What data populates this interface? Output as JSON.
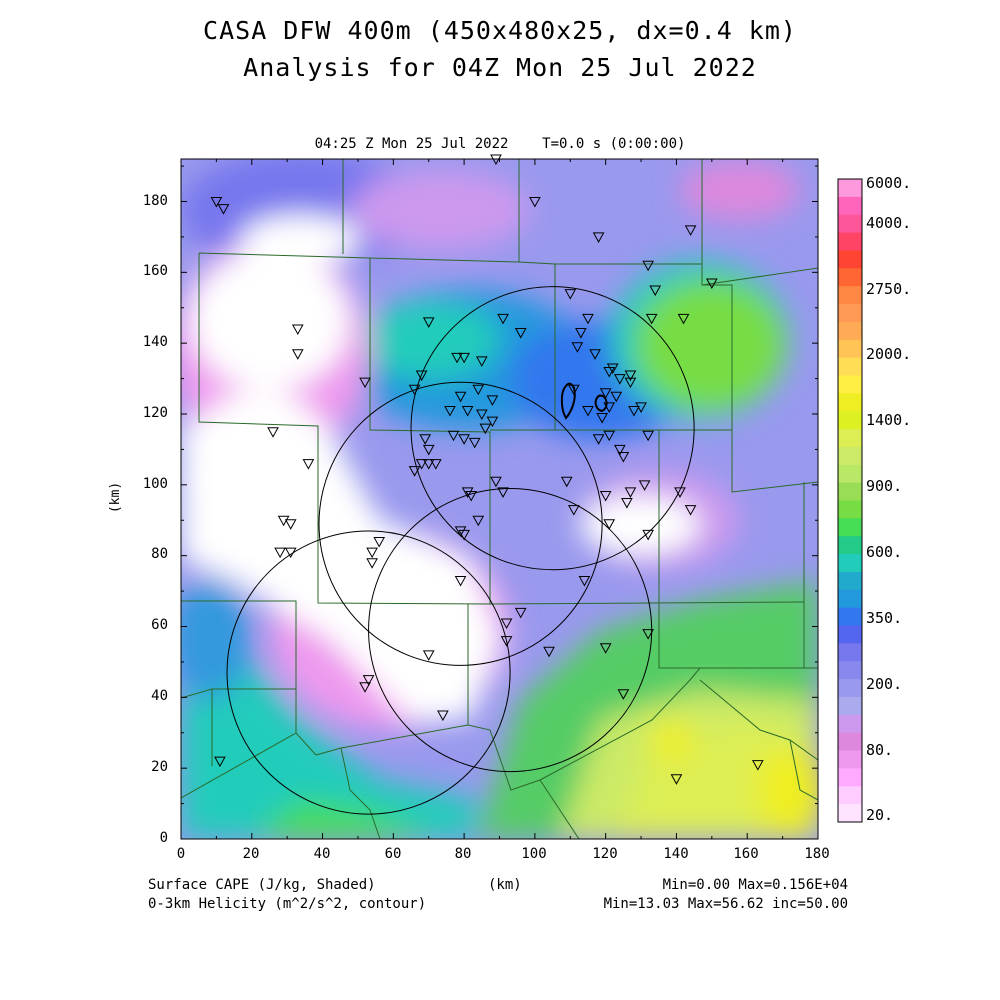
{
  "header": {
    "title_line1": "CASA DFW 400m (450x480x25, dx=0.4 km)",
    "title_line2": "Analysis for 04Z Mon 25 Jul 2022",
    "subtitle": "04:25 Z Mon 25 Jul 2022    T=0.0 s (0:00:00)"
  },
  "axes": {
    "y_label": "(km)",
    "x_label": "(km)",
    "y_ticks": [
      "0",
      "20",
      "40",
      "60",
      "80",
      "100",
      "120",
      "140",
      "160",
      "180"
    ],
    "x_ticks": [
      "0",
      "20",
      "40",
      "60",
      "80",
      "100",
      "120",
      "140",
      "160",
      "180"
    ],
    "x_range_km": [
      0,
      180
    ],
    "y_range_km": [
      0,
      192
    ]
  },
  "colorbar": {
    "labels": [
      "6000.",
      "4000.",
      "2750.",
      "2000.",
      "1400.",
      "900.",
      "600.",
      "350.",
      "200.",
      "80.",
      "20."
    ],
    "colors": [
      "#ff99dd",
      "#ff66bb",
      "#ff5599",
      "#ff4466",
      "#ff4433",
      "#ff6633",
      "#ff8844",
      "#ff9955",
      "#ffaa55",
      "#ffc455",
      "#ffdd55",
      "#ffee44",
      "#eeee22",
      "#ddf022",
      "#ddee55",
      "#ccea66",
      "#b8e866",
      "#99dd55",
      "#77dd44",
      "#44dd55",
      "#22cc88",
      "#22ccbb",
      "#22aacc",
      "#2299dd",
      "#3377ee",
      "#5566ee",
      "#7777ee",
      "#8888ee",
      "#9999ee",
      "#aaaaee",
      "#cc99ee",
      "#dd88dd",
      "#ee99ee",
      "#ffaaff",
      "#ffccff",
      "#ffe4ff"
    ]
  },
  "footer": {
    "left_line1": "Surface CAPE (J/kg, Shaded)",
    "left_line2": "0-3km Helicity (m^2/s^2, contour)",
    "right_line1": "Min=0.00 Max=0.156E+04",
    "right_line2": "Min=13.03 Max=56.62 inc=50.00",
    "center_label": "(km)"
  },
  "map": {
    "radars": [
      {
        "name": "radar-ring-1",
        "center_km": [
          53,
          47
        ],
        "radius_km": 40
      },
      {
        "name": "radar-ring-2",
        "center_km": [
          79,
          89
        ],
        "radius_km": 40
      },
      {
        "name": "radar-ring-3",
        "center_km": [
          105,
          116
        ],
        "radius_km": 40
      },
      {
        "name": "radar-ring-4",
        "center_km": [
          93,
          59
        ],
        "radius_km": 40
      }
    ],
    "stations_km": [
      [
        10,
        180
      ],
      [
        12,
        178
      ],
      [
        89,
        192
      ],
      [
        100,
        180
      ],
      [
        118,
        170
      ],
      [
        132,
        162
      ],
      [
        134,
        155
      ],
      [
        144,
        172
      ],
      [
        150,
        157
      ],
      [
        33,
        144
      ],
      [
        33,
        137
      ],
      [
        52,
        129
      ],
      [
        26,
        115
      ],
      [
        36,
        106
      ],
      [
        29,
        90
      ],
      [
        31,
        89
      ],
      [
        28,
        81
      ],
      [
        31,
        81
      ],
      [
        66,
        127
      ],
      [
        68,
        131
      ],
      [
        70,
        146
      ],
      [
        78,
        136
      ],
      [
        80,
        136
      ],
      [
        85,
        135
      ],
      [
        84,
        127
      ],
      [
        79,
        125
      ],
      [
        76,
        121
      ],
      [
        81,
        121
      ],
      [
        85,
        120
      ],
      [
        88,
        118
      ],
      [
        88,
        124
      ],
      [
        91,
        147
      ],
      [
        96,
        143
      ],
      [
        69,
        113
      ],
      [
        70,
        110
      ],
      [
        66,
        104
      ],
      [
        68,
        106
      ],
      [
        70,
        106
      ],
      [
        72,
        106
      ],
      [
        77,
        114
      ],
      [
        80,
        113
      ],
      [
        83,
        112
      ],
      [
        86,
        116
      ],
      [
        89,
        101
      ],
      [
        91,
        98
      ],
      [
        81,
        98
      ],
      [
        82,
        97
      ],
      [
        84,
        90
      ],
      [
        79,
        87
      ],
      [
        80,
        86
      ],
      [
        56,
        84
      ],
      [
        54,
        81
      ],
      [
        54,
        78
      ],
      [
        79,
        73
      ],
      [
        92,
        61
      ],
      [
        96,
        64
      ],
      [
        92,
        56
      ],
      [
        70,
        52
      ],
      [
        74,
        35
      ],
      [
        53,
        45
      ],
      [
        52,
        43
      ],
      [
        11,
        22
      ],
      [
        110,
        154
      ],
      [
        113,
        143
      ],
      [
        115,
        147
      ],
      [
        112,
        139
      ],
      [
        117,
        137
      ],
      [
        121,
        132
      ],
      [
        123,
        125
      ],
      [
        124,
        130
      ],
      [
        127,
        131
      ],
      [
        127,
        129
      ],
      [
        128,
        121
      ],
      [
        130,
        122
      ],
      [
        133,
        147
      ],
      [
        142,
        147
      ],
      [
        111,
        127
      ],
      [
        115,
        121
      ],
      [
        119,
        119
      ],
      [
        121,
        122
      ],
      [
        118,
        113
      ],
      [
        121,
        114
      ],
      [
        124,
        110
      ],
      [
        125,
        108
      ],
      [
        132,
        114
      ],
      [
        109,
        101
      ],
      [
        111,
        93
      ],
      [
        114,
        73
      ],
      [
        120,
        97
      ],
      [
        121,
        89
      ],
      [
        126,
        95
      ],
      [
        127,
        98
      ],
      [
        131,
        100
      ],
      [
        132,
        86
      ],
      [
        141,
        98
      ],
      [
        144,
        93
      ],
      [
        104,
        53
      ],
      [
        120,
        54
      ],
      [
        125,
        41
      ],
      [
        132,
        58
      ],
      [
        140,
        17
      ],
      [
        163,
        21
      ],
      [
        120,
        126
      ],
      [
        122,
        133
      ]
    ]
  }
}
